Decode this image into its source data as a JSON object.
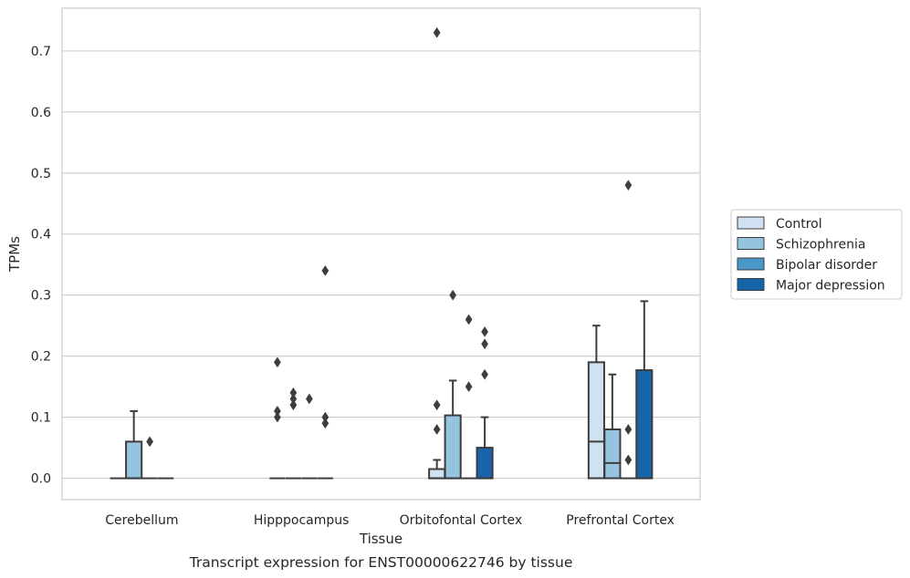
{
  "chart_data": {
    "type": "box",
    "title": "",
    "caption": "Transcript expression for ENST00000622746 by tissue",
    "xlabel": "Tissue",
    "ylabel": "TPMs",
    "ylim": [
      -0.035,
      0.77
    ],
    "yticks": [
      0.0,
      0.1,
      0.2,
      0.3,
      0.4,
      0.5,
      0.6,
      0.7
    ],
    "ytick_labels": [
      "0.0",
      "0.1",
      "0.2",
      "0.3",
      "0.4",
      "0.5",
      "0.6",
      "0.7"
    ],
    "grid": "horizontal",
    "legend_position": "right",
    "categories": [
      "Cerebellum",
      "Hipppocampus",
      "Orbitofontal Cortex",
      "Prefrontal Cortex"
    ],
    "series": [
      {
        "name": "Control",
        "color": "#d0e1f2",
        "boxes": [
          {
            "q1": 0,
            "median": 0,
            "q3": 0,
            "whisker_low": 0,
            "whisker_high": 0,
            "outliers": []
          },
          {
            "q1": 0,
            "median": 0,
            "q3": 0,
            "whisker_low": 0,
            "whisker_high": 0,
            "outliers": [
              0.1,
              0.11,
              0.19
            ]
          },
          {
            "q1": 0,
            "median": 0,
            "q3": 0.015,
            "whisker_low": 0,
            "whisker_high": 0.03,
            "outliers": [
              0.08,
              0.12,
              0.73
            ]
          },
          {
            "q1": 0,
            "median": 0.06,
            "q3": 0.19,
            "whisker_low": 0,
            "whisker_high": 0.25,
            "outliers": []
          }
        ]
      },
      {
        "name": "Schizophrenia",
        "color": "#94c4df",
        "boxes": [
          {
            "q1": 0,
            "median": 0,
            "q3": 0.06,
            "whisker_low": 0,
            "whisker_high": 0.11,
            "outliers": []
          },
          {
            "q1": 0,
            "median": 0,
            "q3": 0,
            "whisker_low": 0,
            "whisker_high": 0,
            "outliers": [
              0.12,
              0.13,
              0.14
            ]
          },
          {
            "q1": 0,
            "median": 0,
            "q3": 0.103,
            "whisker_low": 0,
            "whisker_high": 0.16,
            "outliers": [
              0.3
            ]
          },
          {
            "q1": 0,
            "median": 0.025,
            "q3": 0.08,
            "whisker_low": 0,
            "whisker_high": 0.17,
            "outliers": []
          }
        ]
      },
      {
        "name": "Bipolar disorder",
        "color": "#4a98c9",
        "boxes": [
          {
            "q1": 0,
            "median": 0,
            "q3": 0,
            "whisker_low": 0,
            "whisker_high": 0,
            "outliers": [
              0.06
            ]
          },
          {
            "q1": 0,
            "median": 0,
            "q3": 0,
            "whisker_low": 0,
            "whisker_high": 0,
            "outliers": [
              0.13
            ]
          },
          {
            "q1": 0,
            "median": 0,
            "q3": 0,
            "whisker_low": 0,
            "whisker_high": 0,
            "outliers": [
              0.15,
              0.26
            ]
          },
          {
            "q1": 0,
            "median": 0,
            "q3": 0,
            "whisker_low": 0,
            "whisker_high": 0,
            "outliers": [
              0.03,
              0.08,
              0.48
            ]
          }
        ]
      },
      {
        "name": "Major depression",
        "color": "#1764ab",
        "boxes": [
          {
            "q1": 0,
            "median": 0,
            "q3": 0,
            "whisker_low": 0,
            "whisker_high": 0,
            "outliers": []
          },
          {
            "q1": 0,
            "median": 0,
            "q3": 0,
            "whisker_low": 0,
            "whisker_high": 0,
            "outliers": [
              0.09,
              0.1,
              0.34
            ]
          },
          {
            "q1": 0,
            "median": 0,
            "q3": 0.05,
            "whisker_low": 0,
            "whisker_high": 0.1,
            "outliers": [
              0.17,
              0.22,
              0.24
            ]
          },
          {
            "q1": 0,
            "median": 0,
            "q3": 0.177,
            "whisker_low": 0,
            "whisker_high": 0.29,
            "outliers": []
          }
        ]
      }
    ]
  }
}
